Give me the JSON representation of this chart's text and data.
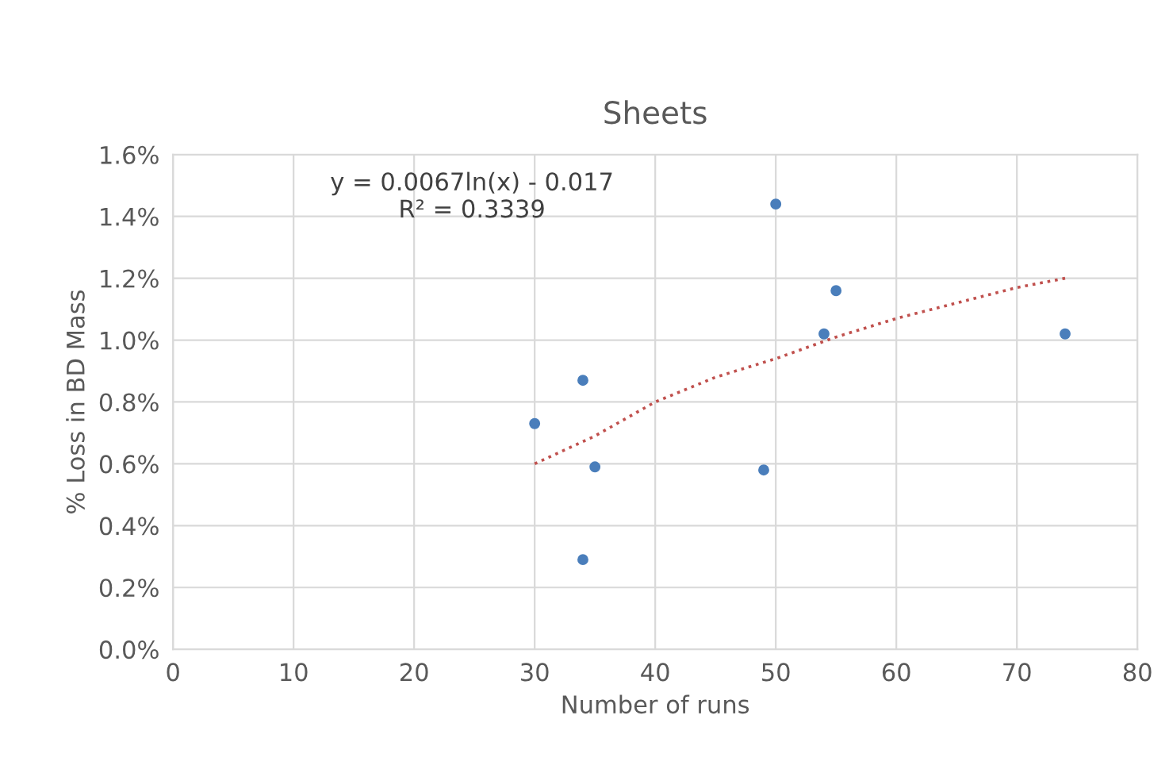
{
  "chart_data": {
    "type": "scatter",
    "title": "Sheets",
    "xlabel": "Number of runs",
    "ylabel": "% Loss in BD Mass",
    "xlim": [
      0,
      80
    ],
    "xticks": [
      0,
      10,
      20,
      30,
      40,
      50,
      60,
      70,
      80
    ],
    "ylim": [
      0,
      1.6
    ],
    "yticks": [
      {
        "value": 0,
        "label": "0.0%"
      },
      {
        "value": 0.2,
        "label": "0.2%"
      },
      {
        "value": 0.4,
        "label": "0.4%"
      },
      {
        "value": 0.6,
        "label": "0.6%"
      },
      {
        "value": 0.8,
        "label": "0.8%"
      },
      {
        "value": 1.0,
        "label": "1.0%"
      },
      {
        "value": 1.2,
        "label": "1.2%"
      },
      {
        "value": 1.4,
        "label": "1.4%"
      },
      {
        "value": 1.6,
        "label": "1.6%"
      }
    ],
    "grid": true,
    "legend": false,
    "series": [
      {
        "marker": "circle",
        "color": "#4a7ebb",
        "x": [
          30,
          34,
          35,
          34,
          49,
          50,
          54,
          55,
          74
        ],
        "values": [
          0.73,
          0.87,
          0.59,
          0.29,
          0.58,
          1.44,
          1.02,
          1.16,
          1.02
        ]
      },
      {
        "type": "line",
        "marker": "none",
        "line_style": "dotted",
        "color": "#c0504d",
        "x": [
          30,
          35,
          40,
          45,
          50,
          55,
          60,
          65,
          70,
          74
        ],
        "values": [
          0.6,
          0.69,
          0.8,
          0.88,
          0.94,
          1.01,
          1.07,
          1.12,
          1.17,
          1.2
        ]
      }
    ],
    "annotations": [
      "y = 0.0067ln(x) - 0.017\nR² = 0.3339"
    ]
  }
}
